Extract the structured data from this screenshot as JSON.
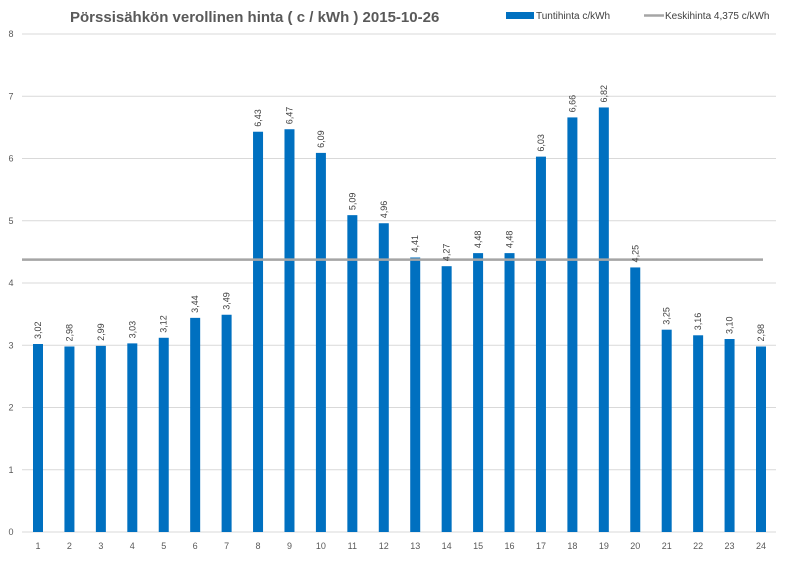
{
  "chart_data": {
    "type": "bar",
    "title": "Pörssisähkön verollinen hinta ( c / kWh ) 2015-10-26",
    "xlabel": "",
    "ylabel": "",
    "ylim": [
      0,
      8
    ],
    "yticks": [
      "0",
      "1",
      "2",
      "3",
      "4",
      "5",
      "6",
      "7",
      "8"
    ],
    "grid": true,
    "legend_position": "top-right",
    "categories": [
      "1",
      "2",
      "3",
      "4",
      "5",
      "6",
      "7",
      "8",
      "9",
      "10",
      "11",
      "12",
      "13",
      "14",
      "15",
      "16",
      "17",
      "18",
      "19",
      "20",
      "21",
      "22",
      "23",
      "24"
    ],
    "series": [
      {
        "name": "Tuntihinta c/kWh",
        "type": "bar",
        "color": "#0070C0",
        "values": [
          3.02,
          2.98,
          2.99,
          3.03,
          3.12,
          3.44,
          3.49,
          6.43,
          6.47,
          6.09,
          5.09,
          4.96,
          4.41,
          4.27,
          4.48,
          4.48,
          6.03,
          6.66,
          6.82,
          4.25,
          3.25,
          3.16,
          3.1,
          2.98
        ],
        "labels": [
          "3,02",
          "2,98",
          "2,99",
          "3,03",
          "3,12",
          "3,44",
          "3,49",
          "6,43",
          "6,47",
          "6,09",
          "5,09",
          "4,96",
          "4,41",
          "4,27",
          "4,48",
          "4,48",
          "6,03",
          "6,66",
          "6,82",
          "4,25",
          "3,25",
          "3,16",
          "3,10",
          "2,98"
        ]
      },
      {
        "name": "Keskihinta 4,375 c/kWh",
        "type": "line",
        "color": "#A5A5A5",
        "value": 4.375
      }
    ]
  }
}
